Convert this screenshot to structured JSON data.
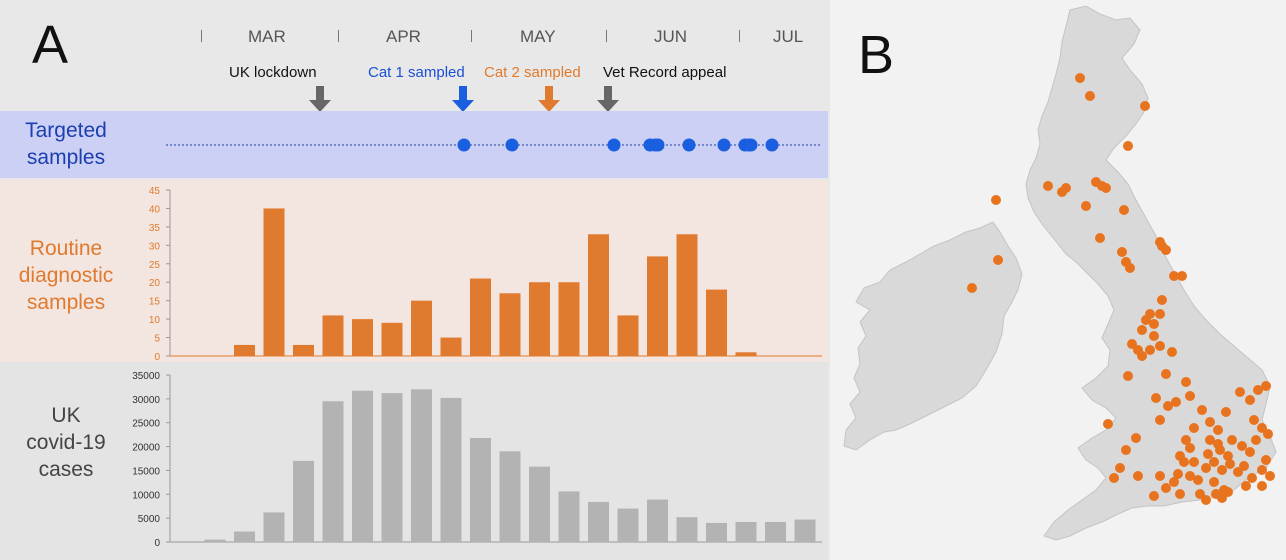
{
  "panel_a": {
    "letter": "A",
    "months": [
      "MAR",
      "APR",
      "MAY",
      "JUN",
      "JUL"
    ],
    "events": [
      {
        "label": "UK lockdown",
        "color": "#111111",
        "arrow_color": "#666666"
      },
      {
        "label": "Cat 1 sampled",
        "color": "#1a4fd6",
        "arrow_color": "#1a5fe0"
      },
      {
        "label": "Cat 2 sampled",
        "color": "#e07a2e",
        "arrow_color": "#e07a2e"
      },
      {
        "label": "Vet Record appeal",
        "color": "#111111",
        "arrow_color": "#666666"
      }
    ],
    "targeted_label": [
      "Targeted",
      "samples"
    ],
    "routine_label": [
      "Routine",
      "diagnostic",
      "samples"
    ],
    "covid_label": [
      "UK",
      "covid-19",
      "cases"
    ]
  },
  "panel_b": {
    "letter": "B"
  },
  "colors": {
    "targeted_band": "#cdd0f5",
    "routine_band": "#f3e5df",
    "covid_band": "#e4e4e4",
    "blue": "#1a5fe0",
    "orange": "#e07a2e",
    "grey_bar": "#b3b3b3",
    "map_land": "#d9d9d9",
    "map_dot": "#e8731f"
  },
  "chart_data": [
    {
      "type": "scatter",
      "name": "targeted-samples",
      "points_count": 12
    },
    {
      "type": "bar",
      "name": "routine-diagnostic-samples",
      "values": [
        0,
        0,
        3,
        40,
        3,
        11,
        10,
        9,
        15,
        5,
        21,
        17,
        20,
        20,
        33,
        11,
        27,
        33,
        18,
        1,
        0,
        0
      ],
      "ylim": [
        0,
        45
      ],
      "yticks": [
        0,
        5,
        10,
        15,
        20,
        25,
        30,
        35,
        40,
        45
      ]
    },
    {
      "type": "bar",
      "name": "uk-covid-19-cases",
      "values": [
        0,
        500,
        2200,
        6200,
        17000,
        29500,
        31700,
        31200,
        32000,
        30200,
        21800,
        19000,
        15800,
        10600,
        8400,
        7000,
        8900,
        5200,
        4000,
        4200,
        4200,
        4700
      ],
      "ylim": [
        0,
        35000
      ],
      "yticks": [
        0,
        5000,
        10000,
        15000,
        20000,
        25000,
        30000,
        35000
      ]
    }
  ]
}
